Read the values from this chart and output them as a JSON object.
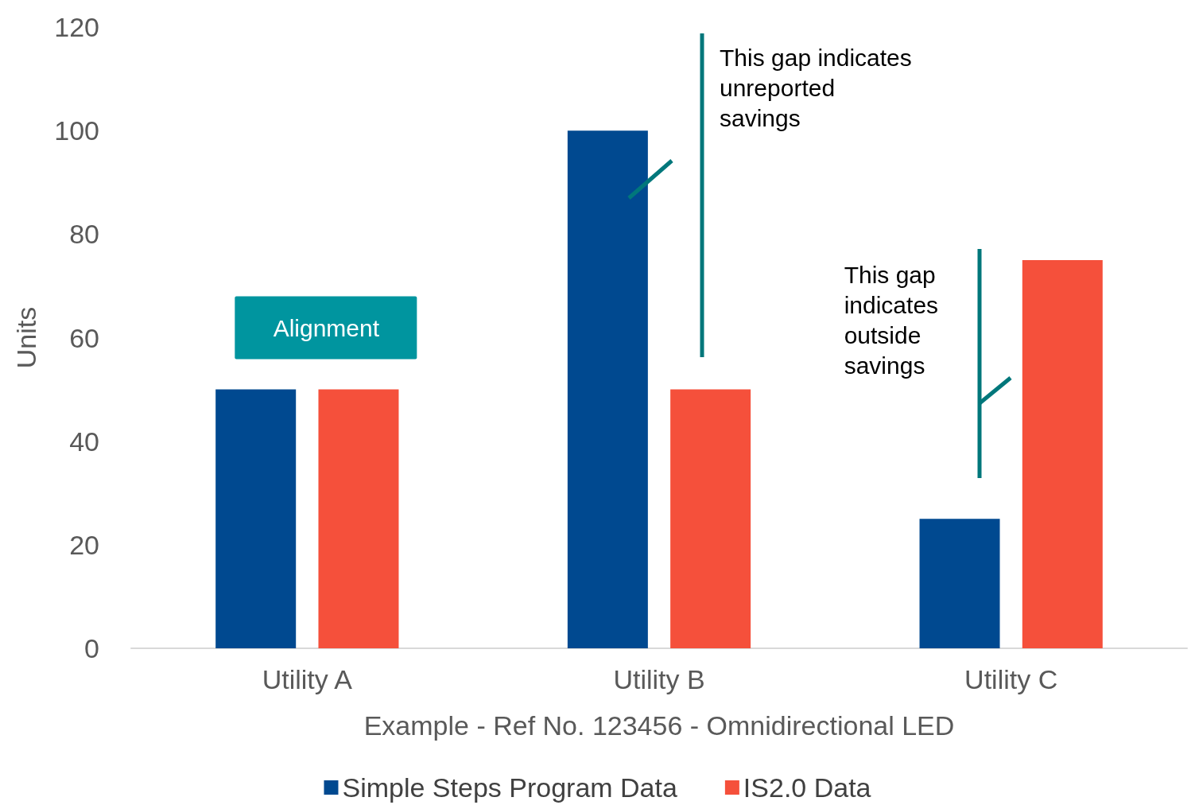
{
  "chart_data": {
    "type": "bar",
    "xlabel": "Example - Ref No. 123456 - Omnidirectional LED",
    "ylabel": "Units",
    "categories": [
      "Utility A",
      "Utility B",
      "Utility C"
    ],
    "series": [
      {
        "name": "Simple Steps Program Data",
        "color": "#004990",
        "values": [
          50,
          100,
          25
        ]
      },
      {
        "name": "IS2.0 Data",
        "color": "#f5503b",
        "values": [
          50,
          50,
          75
        ]
      }
    ],
    "ylim": [
      0,
      120
    ],
    "yticks": [
      0,
      20,
      40,
      60,
      80,
      100,
      120
    ],
    "grid": false,
    "legend": "bottom",
    "annotations": [
      "Alignment",
      "This gap indicates unreported savings",
      "This gap indicates outside savings"
    ]
  }
}
